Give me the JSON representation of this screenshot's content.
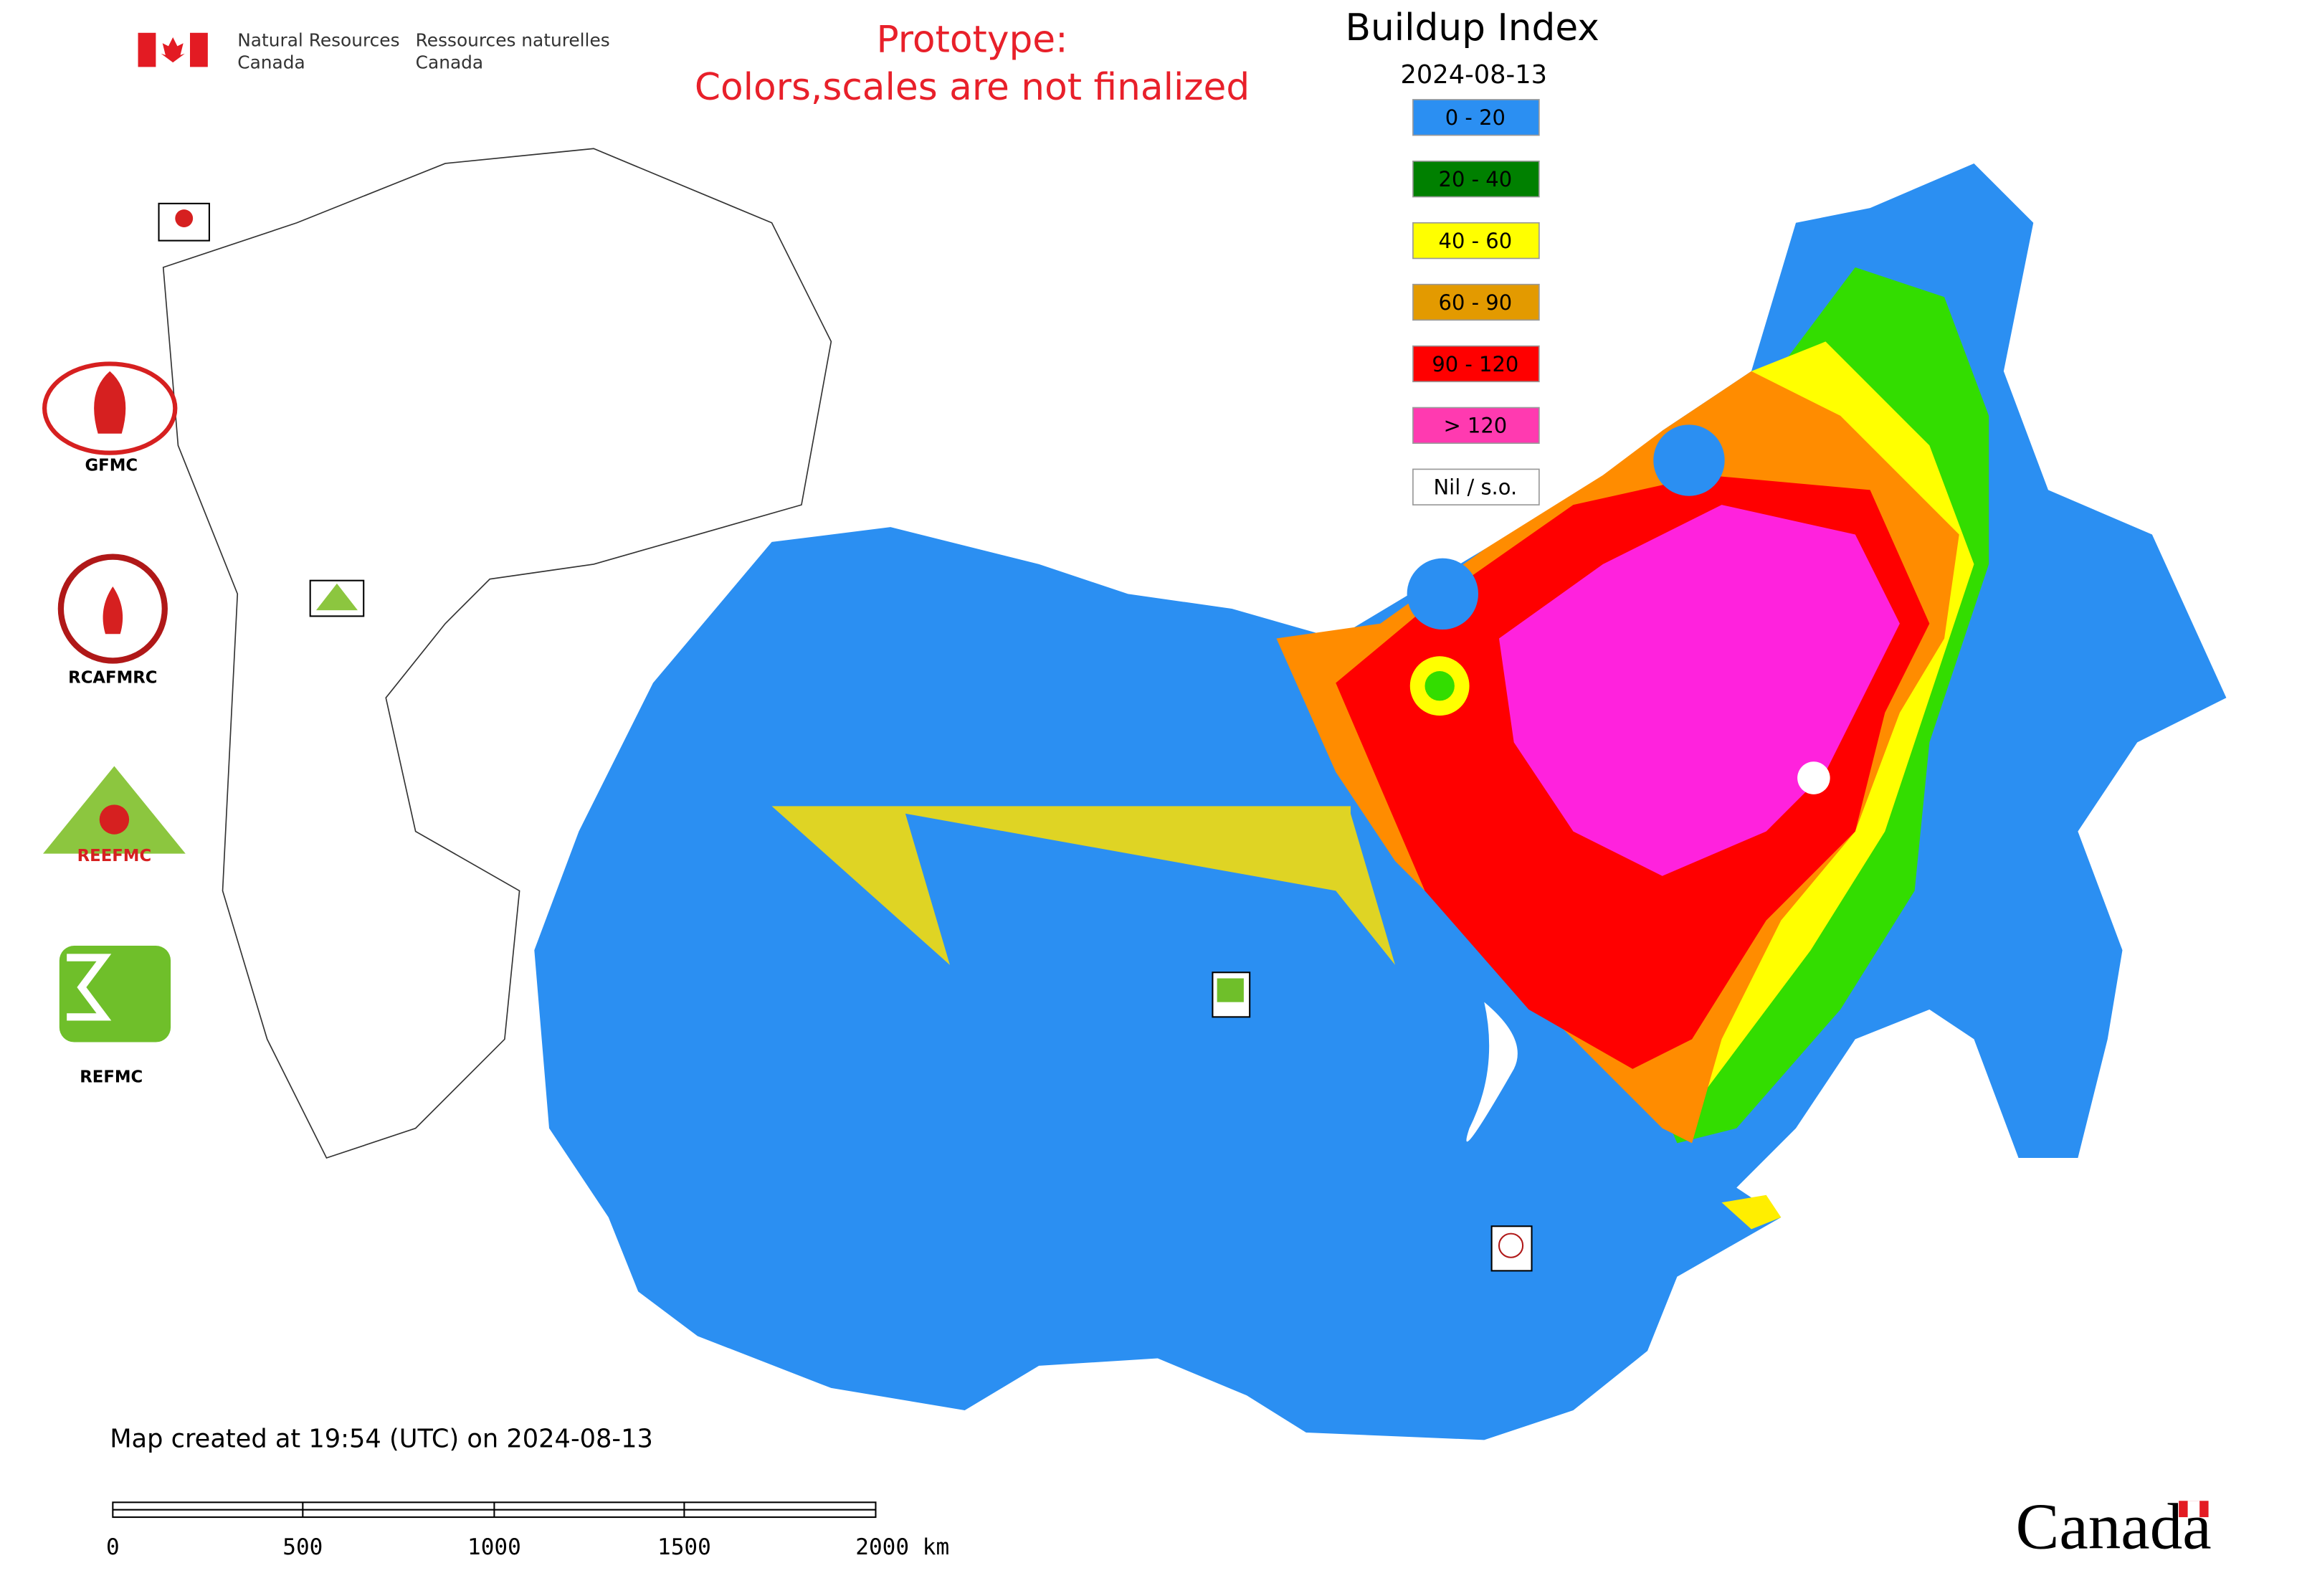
{
  "header": {
    "agency_en": "Natural Resources",
    "agency_en_2": "Canada",
    "agency_fr": "Ressources naturelles",
    "agency_fr_2": "Canada"
  },
  "notice": {
    "line1": "Prototype:",
    "line2": "Colors,scales are not finalized"
  },
  "legend": {
    "title": "Buildup Index",
    "date": "2024-08-13",
    "items": [
      {
        "label": "0 - 20",
        "color": "#2b8ff2"
      },
      {
        "label": "20 - 40",
        "color": "#008000"
      },
      {
        "label": "40 - 60",
        "color": "#ffff00"
      },
      {
        "label": "60 - 90",
        "color": "#e39a00"
      },
      {
        "label": "90 - 120",
        "color": "#ff0000"
      },
      {
        "label": "> 120",
        "color": "#ff3ab0"
      },
      {
        "label": "Nil / s.o.",
        "color": "#ffffff"
      }
    ]
  },
  "logos": [
    "GFMC",
    "RCAFMRC",
    "REEFMC",
    "REFMC"
  ],
  "footer": {
    "created": "Map created at 19:54 (UTC) on 2024-08-13",
    "scale_labels": [
      "0",
      "500",
      "1000",
      "1500",
      "2000 km"
    ],
    "wordmark": "Canada"
  }
}
